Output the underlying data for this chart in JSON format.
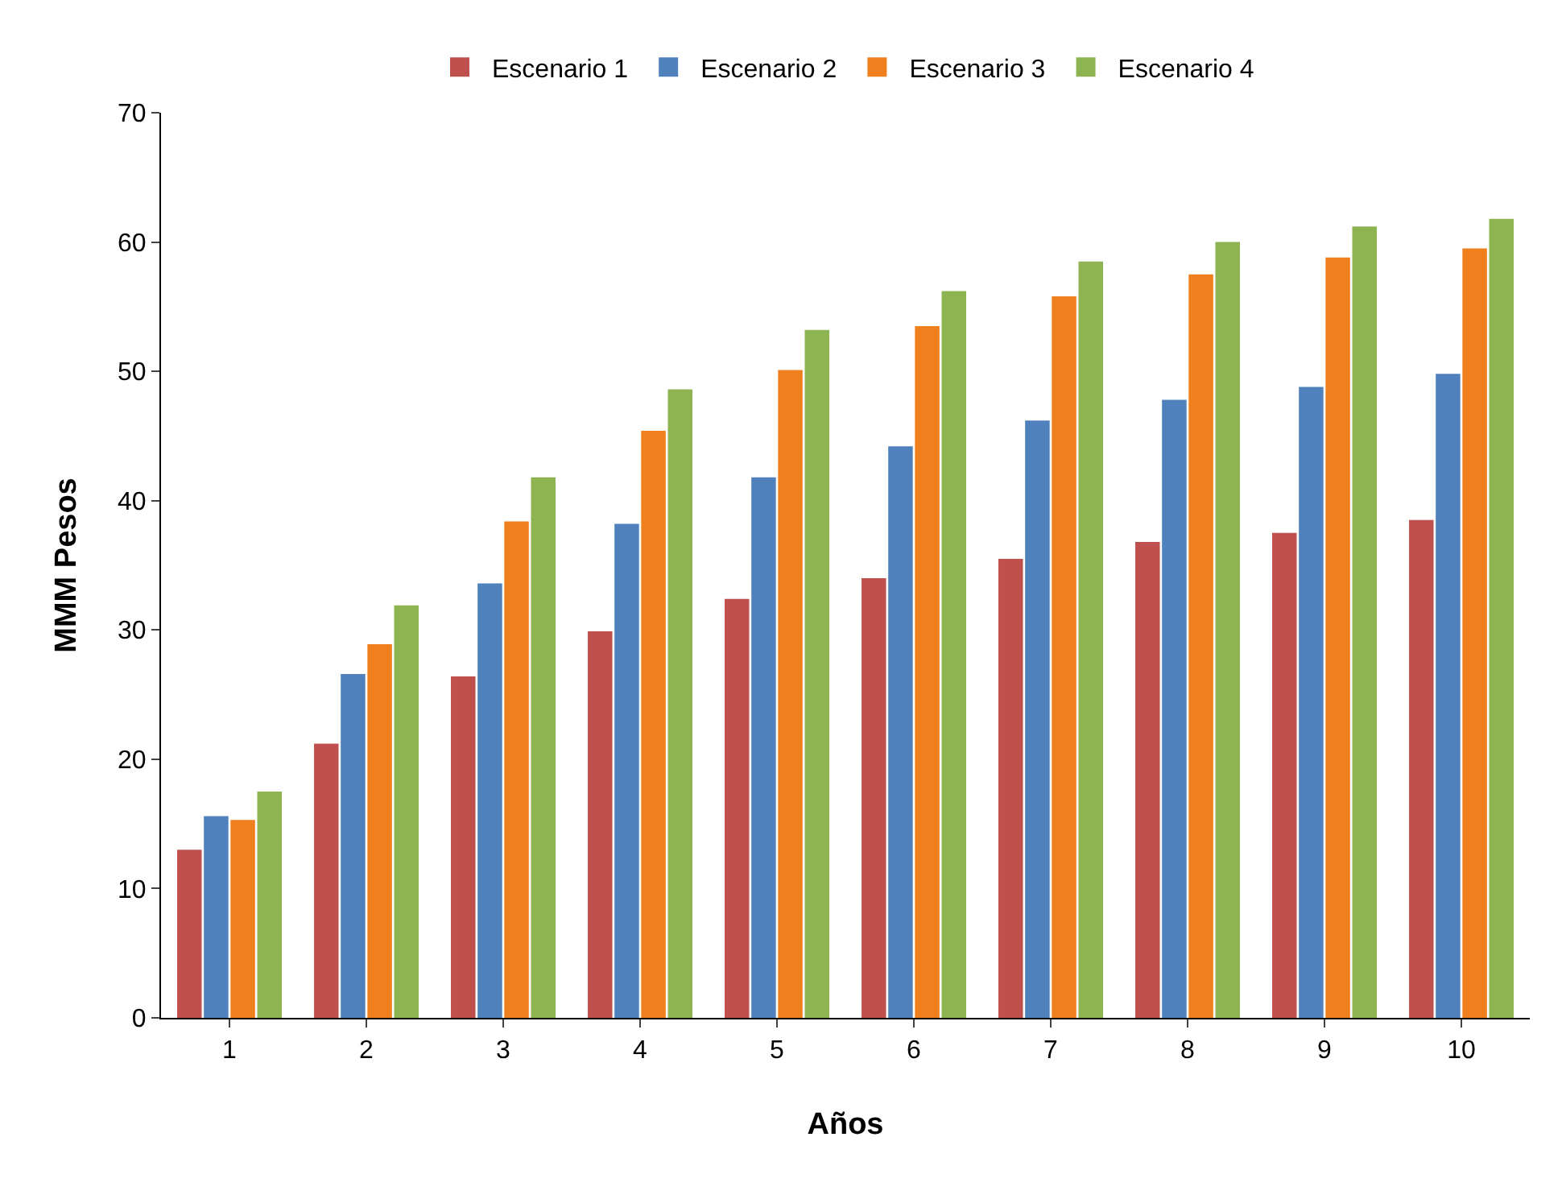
{
  "chart_data": {
    "type": "bar",
    "xlabel": "Años",
    "ylabel": "MMM Pesos",
    "categories": [
      "1",
      "2",
      "3",
      "4",
      "5",
      "6",
      "7",
      "8",
      "9",
      "10"
    ],
    "series": [
      {
        "name": "Escenario 1",
        "color": "#c0504d",
        "values": [
          13.0,
          21.2,
          26.4,
          29.9,
          32.4,
          34.0,
          35.5,
          36.8,
          37.5,
          38.5
        ]
      },
      {
        "name": "Escenario 2",
        "color": "#4f81bd",
        "values": [
          15.6,
          26.6,
          33.6,
          38.2,
          41.8,
          44.2,
          46.2,
          47.8,
          48.8,
          49.8
        ]
      },
      {
        "name": "Escenario 3",
        "color": "#f07f1e",
        "values": [
          15.3,
          28.9,
          38.4,
          45.4,
          50.1,
          53.5,
          55.8,
          57.5,
          58.8,
          59.5
        ]
      },
      {
        "name": "Escenario 4",
        "color": "#8db450",
        "values": [
          17.5,
          31.9,
          41.8,
          48.6,
          53.2,
          56.2,
          58.5,
          60.0,
          61.2,
          61.8
        ]
      }
    ],
    "ylim": [
      0,
      70
    ],
    "yticks": [
      0,
      10,
      20,
      30,
      40,
      50,
      60,
      70
    ],
    "legend": "top"
  }
}
